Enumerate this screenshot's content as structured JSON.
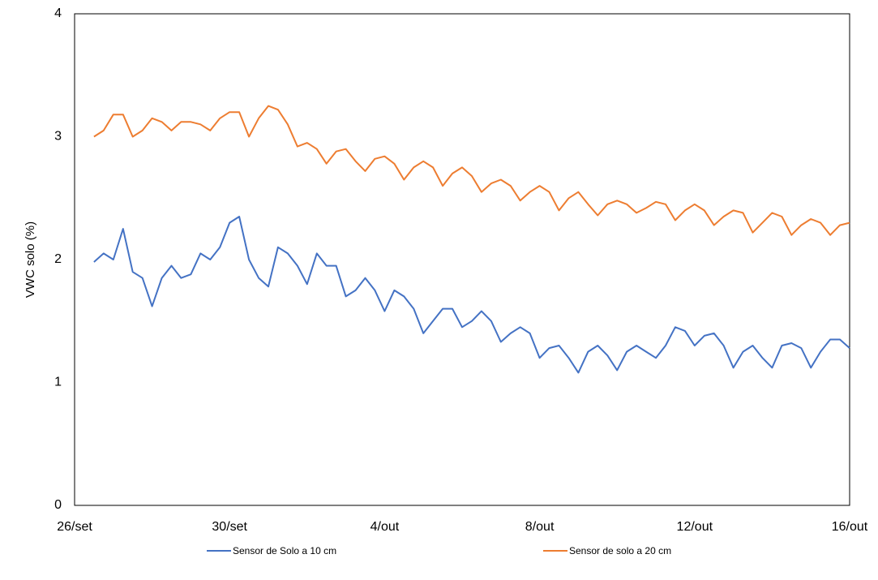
{
  "chart_data": {
    "type": "line",
    "ylabel": "VWC solo (%)",
    "categories": [
      "26/set",
      null,
      null,
      null,
      null,
      null,
      null,
      null,
      null,
      null,
      null,
      null,
      null,
      null,
      null,
      null,
      "30/set",
      null,
      null,
      null,
      null,
      null,
      null,
      null,
      null,
      null,
      null,
      null,
      null,
      null,
      null,
      null,
      "4/out",
      null,
      null,
      null,
      null,
      null,
      null,
      null,
      null,
      null,
      null,
      null,
      null,
      null,
      null,
      null,
      "8/out",
      null,
      null,
      null,
      null,
      null,
      null,
      null,
      null,
      null,
      null,
      null,
      null,
      null,
      null,
      null,
      "12/out",
      null,
      null,
      null,
      null,
      null,
      null,
      null,
      null,
      null,
      null,
      null,
      null,
      null,
      null,
      null,
      "16/out"
    ],
    "series": [
      {
        "name": "Sensor de Solo a 10 cm",
        "color": "#4472c4",
        "values": [
          null,
          null,
          1.98,
          2.05,
          2.0,
          2.25,
          1.9,
          1.85,
          1.62,
          1.85,
          1.95,
          1.85,
          1.88,
          2.05,
          2.0,
          2.1,
          2.3,
          2.35,
          2.0,
          1.85,
          1.78,
          2.1,
          2.05,
          1.95,
          1.8,
          2.05,
          1.95,
          1.95,
          1.7,
          1.75,
          1.85,
          1.75,
          1.58,
          1.75,
          1.7,
          1.6,
          1.4,
          1.5,
          1.6,
          1.6,
          1.45,
          1.5,
          1.58,
          1.5,
          1.33,
          1.4,
          1.45,
          1.4,
          1.2,
          1.28,
          1.3,
          1.2,
          1.08,
          1.25,
          1.3,
          1.22,
          1.1,
          1.25,
          1.3,
          1.25,
          1.2,
          1.3,
          1.45,
          1.42,
          1.3,
          1.38,
          1.4,
          1.3,
          1.12,
          1.25,
          1.3,
          1.2,
          1.12,
          1.3,
          1.32,
          1.28,
          1.12,
          1.25,
          1.35,
          1.35,
          1.28
        ]
      },
      {
        "name": "Sensor de solo a 20 cm",
        "color": "#ed7d31",
        "values": [
          null,
          null,
          3.0,
          3.05,
          3.18,
          3.18,
          3.0,
          3.05,
          3.15,
          3.12,
          3.05,
          3.12,
          3.12,
          3.1,
          3.05,
          3.15,
          3.2,
          3.2,
          3.0,
          3.15,
          3.25,
          3.22,
          3.1,
          2.92,
          2.95,
          2.9,
          2.78,
          2.88,
          2.9,
          2.8,
          2.72,
          2.82,
          2.84,
          2.78,
          2.65,
          2.75,
          2.8,
          2.75,
          2.6,
          2.7,
          2.75,
          2.68,
          2.55,
          2.62,
          2.65,
          2.6,
          2.48,
          2.55,
          2.6,
          2.55,
          2.4,
          2.5,
          2.55,
          2.45,
          2.36,
          2.45,
          2.48,
          2.45,
          2.38,
          2.42,
          2.47,
          2.45,
          2.32,
          2.4,
          2.45,
          2.4,
          2.28,
          2.35,
          2.4,
          2.38,
          2.22,
          2.3,
          2.38,
          2.35,
          2.2,
          2.28,
          2.33,
          2.3,
          2.2,
          2.28,
          2.3
        ]
      }
    ],
    "ylim": [
      0,
      4
    ],
    "yticks": [
      0,
      1,
      2,
      3,
      4
    ],
    "grid": false,
    "legend": "bottom"
  }
}
